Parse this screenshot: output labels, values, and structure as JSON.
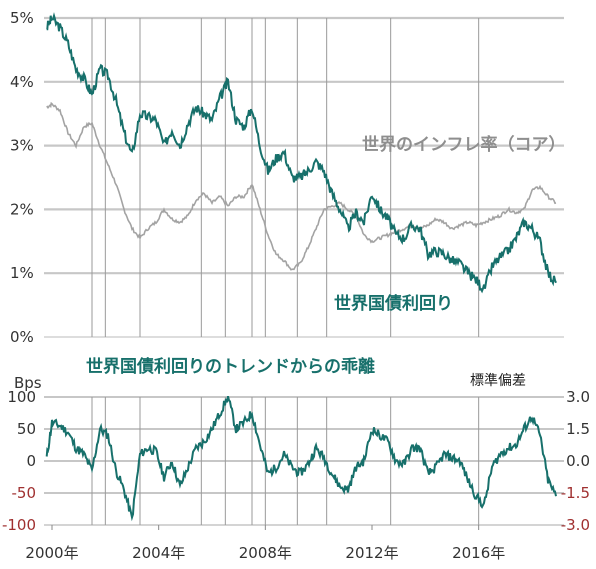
{
  "colors": {
    "teal": "#17706b",
    "gray": "#a3a3a3",
    "red_axis": "#a03030",
    "grid": "#c7c7c7",
    "vline": "#9a9a9a"
  },
  "chart_data": [
    {
      "type": "line",
      "xlim": [
        1999.7,
        2019.2
      ],
      "ylim": [
        0,
        5
      ],
      "y_ticks": [
        "0%",
        "1%",
        "2%",
        "3%",
        "4%",
        "5%"
      ],
      "grid": true,
      "vertical_markers": [
        2001.5,
        2002.0,
        2003.3,
        2005.6,
        2006.5,
        2007.5,
        2008.0,
        2009.2,
        2010.3,
        2012.7,
        2016.0
      ],
      "series": [
        {
          "name": "世界国債利回り",
          "color": "#17706b",
          "x": [
            1999.8,
            2000.0,
            2000.3,
            2000.6,
            2000.9,
            2001.2,
            2001.5,
            2001.8,
            2002.1,
            2002.4,
            2002.7,
            2003.0,
            2003.3,
            2003.6,
            2003.9,
            2004.2,
            2004.5,
            2004.8,
            2005.1,
            2005.4,
            2005.7,
            2006.0,
            2006.3,
            2006.6,
            2006.9,
            2007.2,
            2007.5,
            2007.8,
            2008.1,
            2008.4,
            2008.7,
            2009.0,
            2009.3,
            2009.6,
            2009.9,
            2010.2,
            2010.5,
            2010.8,
            2011.1,
            2011.4,
            2011.7,
            2012.0,
            2012.3,
            2012.6,
            2012.9,
            2013.2,
            2013.5,
            2013.8,
            2014.1,
            2014.4,
            2014.7,
            2015.0,
            2015.3,
            2015.6,
            2015.9,
            2016.2,
            2016.5,
            2016.8,
            2017.1,
            2017.4,
            2017.7,
            2018.0,
            2018.3,
            2018.6,
            2018.9
          ],
          "y": [
            4.85,
            5.0,
            4.85,
            4.6,
            4.2,
            4.05,
            3.8,
            4.2,
            4.1,
            3.7,
            3.2,
            2.85,
            3.5,
            3.45,
            3.4,
            3.0,
            3.25,
            3.0,
            3.35,
            3.6,
            3.5,
            3.4,
            3.75,
            4.0,
            3.4,
            3.3,
            3.6,
            3.0,
            2.6,
            2.8,
            2.9,
            2.5,
            2.5,
            2.6,
            2.75,
            2.6,
            2.25,
            2.0,
            1.7,
            1.95,
            1.8,
            2.25,
            2.0,
            1.85,
            1.6,
            1.55,
            1.75,
            1.7,
            1.3,
            1.35,
            1.3,
            1.2,
            1.15,
            1.0,
            0.9,
            0.75,
            1.1,
            1.25,
            1.35,
            1.55,
            1.8,
            1.7,
            1.5,
            1.0,
            0.85
          ]
        },
        {
          "name": "世界のインフレ率（コア）",
          "color": "#a3a3a3",
          "x": [
            1999.8,
            2000.0,
            2000.3,
            2000.6,
            2000.9,
            2001.2,
            2001.5,
            2001.8,
            2002.1,
            2002.4,
            2002.7,
            2003.0,
            2003.3,
            2003.6,
            2003.9,
            2004.2,
            2004.5,
            2004.8,
            2005.1,
            2005.4,
            2005.7,
            2006.0,
            2006.3,
            2006.6,
            2006.9,
            2007.2,
            2007.5,
            2007.8,
            2008.1,
            2008.4,
            2008.7,
            2009.0,
            2009.3,
            2009.6,
            2009.9,
            2010.2,
            2010.5,
            2010.8,
            2011.1,
            2011.4,
            2011.7,
            2012.0,
            2012.3,
            2012.6,
            2012.9,
            2013.2,
            2013.5,
            2013.8,
            2014.1,
            2014.4,
            2014.7,
            2015.0,
            2015.3,
            2015.6,
            2015.9,
            2016.2,
            2016.5,
            2016.8,
            2017.1,
            2017.4,
            2017.7,
            2018.0,
            2018.3,
            2018.6,
            2018.9
          ],
          "y": [
            3.6,
            3.65,
            3.55,
            3.2,
            3.0,
            3.3,
            3.35,
            3.0,
            2.7,
            2.4,
            2.0,
            1.7,
            1.55,
            1.7,
            1.8,
            2.0,
            1.85,
            1.8,
            1.9,
            2.15,
            2.25,
            2.1,
            2.2,
            2.05,
            2.2,
            2.2,
            2.4,
            2.0,
            1.6,
            1.3,
            1.2,
            1.05,
            1.15,
            1.4,
            1.7,
            2.0,
            2.05,
            2.1,
            2.0,
            1.9,
            1.6,
            1.5,
            1.55,
            1.6,
            1.65,
            1.7,
            1.75,
            1.7,
            1.75,
            1.85,
            1.8,
            1.7,
            1.75,
            1.8,
            1.75,
            1.8,
            1.85,
            1.9,
            2.0,
            1.95,
            2.0,
            2.3,
            2.35,
            2.2,
            2.1
          ]
        }
      ],
      "labels": {
        "inflation": "世界のインフレ率（コア）",
        "yield": "世界国債利回り"
      }
    },
    {
      "type": "line",
      "title": "世界国債利回りのトレンドからの乖離",
      "ylabel_left": "Bps",
      "ylabel_right": "標準偏差",
      "xlim": [
        1999.7,
        2019.2
      ],
      "ylim": [
        -100,
        100
      ],
      "y_ticks_left": [
        "100",
        "50",
        "0",
        "-50",
        "-100"
      ],
      "y_ticks_right": [
        "3.0",
        "1.5",
        "0.0",
        "-1.5",
        "-3.0"
      ],
      "x_ticks": [
        2000,
        2004,
        2008,
        2012,
        2016
      ],
      "x_tick_labels": [
        "2000年",
        "2004年",
        "2008年",
        "2012年",
        "2016年"
      ],
      "grid": true,
      "vertical_markers": [
        2001.5,
        2002.0,
        2003.3,
        2005.6,
        2006.5,
        2007.5,
        2008.0,
        2009.2,
        2010.3,
        2012.7,
        2016.0
      ],
      "series": [
        {
          "color": "#17706b",
          "x": [
            1999.8,
            2000.0,
            2000.3,
            2000.6,
            2000.9,
            2001.2,
            2001.5,
            2001.8,
            2002.1,
            2002.4,
            2002.7,
            2003.0,
            2003.3,
            2003.6,
            2003.9,
            2004.2,
            2004.5,
            2004.8,
            2005.1,
            2005.4,
            2005.7,
            2006.0,
            2006.3,
            2006.6,
            2006.9,
            2007.2,
            2007.5,
            2007.8,
            2008.1,
            2008.4,
            2008.7,
            2009.0,
            2009.3,
            2009.6,
            2009.9,
            2010.2,
            2010.5,
            2010.8,
            2011.1,
            2011.4,
            2011.7,
            2012.0,
            2012.3,
            2012.6,
            2012.9,
            2013.2,
            2013.5,
            2013.8,
            2014.1,
            2014.4,
            2014.7,
            2015.0,
            2015.3,
            2015.6,
            2015.9,
            2016.2,
            2016.5,
            2016.8,
            2017.1,
            2017.4,
            2017.7,
            2018.0,
            2018.3,
            2018.6,
            2018.9
          ],
          "y": [
            5,
            60,
            55,
            45,
            20,
            10,
            -15,
            50,
            40,
            -15,
            -45,
            -90,
            10,
            20,
            15,
            -25,
            0,
            -40,
            -10,
            20,
            30,
            50,
            75,
            100,
            50,
            60,
            75,
            25,
            -20,
            -10,
            10,
            -10,
            -20,
            -5,
            20,
            5,
            -20,
            -40,
            -45,
            -10,
            0,
            50,
            40,
            30,
            0,
            -5,
            20,
            20,
            -20,
            -10,
            10,
            5,
            0,
            -30,
            -55,
            -70,
            -10,
            10,
            20,
            25,
            50,
            70,
            40,
            -30,
            -55
          ]
        }
      ]
    }
  ]
}
